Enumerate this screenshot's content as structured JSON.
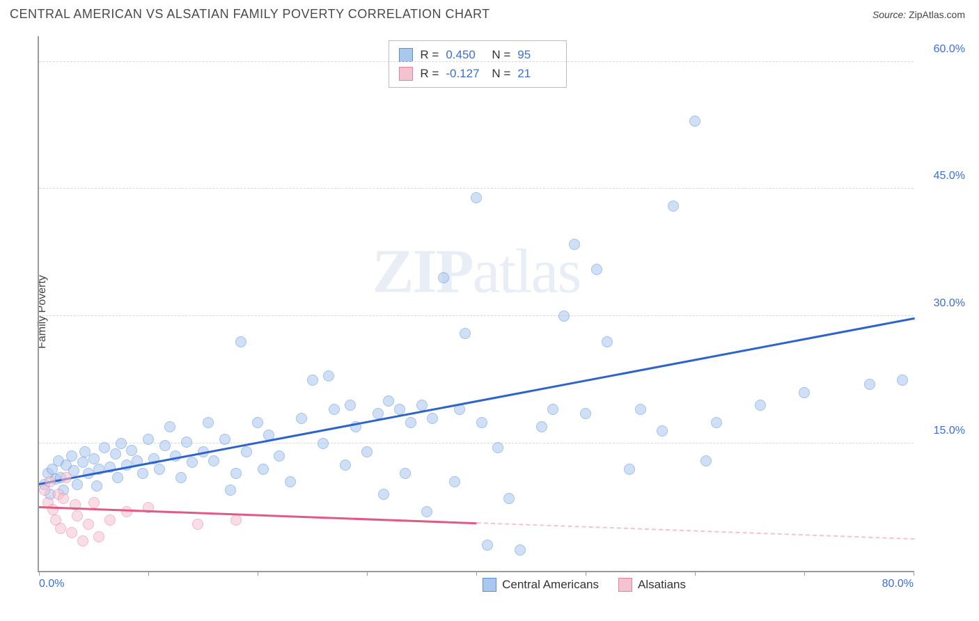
{
  "header": {
    "title": "CENTRAL AMERICAN VS ALSATIAN FAMILY POVERTY CORRELATION CHART",
    "source_label": "Source: ",
    "source_value": "ZipAtlas.com"
  },
  "chart": {
    "type": "scatter",
    "ylabel": "Family Poverty",
    "watermark_bold": "ZIP",
    "watermark_rest": "atlas",
    "xlim": [
      0,
      80
    ],
    "ylim": [
      0,
      63
    ],
    "xtick_positions": [
      0,
      10,
      20,
      30,
      40,
      50,
      60,
      70,
      80
    ],
    "xtick_labels": {
      "0": "0.0%",
      "80": "80.0%"
    },
    "ytick_positions": [
      15,
      30,
      45,
      60
    ],
    "ytick_labels": {
      "15": "15.0%",
      "30": "30.0%",
      "45": "45.0%",
      "60": "60.0%"
    },
    "grid_color": "#d8d8d8",
    "axis_color": "#9a9a9a",
    "tick_label_color": "#3b6fd6",
    "background_color": "#ffffff",
    "marker_radius": 8,
    "marker_opacity": 0.55,
    "series": [
      {
        "name": "Central Americans",
        "fill": "#a9c7ef",
        "stroke": "#5b8fd6",
        "line_color": "#2e63c9",
        "stats": {
          "R": "0.450",
          "N": "95"
        },
        "trend": {
          "x1": 0,
          "y1": 10.5,
          "x2": 80,
          "y2": 30.0,
          "solid_until_x": 80
        },
        "points": [
          [
            0.5,
            10.2
          ],
          [
            0.8,
            11.5
          ],
          [
            1.0,
            9.0
          ],
          [
            1.2,
            12.0
          ],
          [
            1.5,
            10.8
          ],
          [
            1.8,
            13.0
          ],
          [
            2.0,
            11.0
          ],
          [
            2.2,
            9.5
          ],
          [
            2.5,
            12.5
          ],
          [
            3.0,
            13.5
          ],
          [
            3.2,
            11.8
          ],
          [
            3.5,
            10.2
          ],
          [
            4.0,
            12.8
          ],
          [
            4.2,
            14.0
          ],
          [
            4.5,
            11.5
          ],
          [
            5.0,
            13.2
          ],
          [
            5.3,
            10.0
          ],
          [
            5.5,
            12.0
          ],
          [
            6.0,
            14.5
          ],
          [
            6.5,
            12.2
          ],
          [
            7.0,
            13.8
          ],
          [
            7.2,
            11.0
          ],
          [
            7.5,
            15.0
          ],
          [
            8.0,
            12.5
          ],
          [
            8.5,
            14.2
          ],
          [
            9.0,
            13.0
          ],
          [
            9.5,
            11.5
          ],
          [
            10.0,
            15.5
          ],
          [
            10.5,
            13.2
          ],
          [
            11.0,
            12.0
          ],
          [
            11.5,
            14.8
          ],
          [
            12.0,
            17.0
          ],
          [
            12.5,
            13.5
          ],
          [
            13.0,
            11.0
          ],
          [
            13.5,
            15.2
          ],
          [
            14.0,
            12.8
          ],
          [
            15.0,
            14.0
          ],
          [
            15.5,
            17.5
          ],
          [
            16.0,
            13.0
          ],
          [
            17.0,
            15.5
          ],
          [
            17.5,
            9.5
          ],
          [
            18.0,
            11.5
          ],
          [
            18.5,
            27.0
          ],
          [
            19.0,
            14.0
          ],
          [
            20.0,
            17.5
          ],
          [
            20.5,
            12.0
          ],
          [
            21.0,
            16.0
          ],
          [
            22.0,
            13.5
          ],
          [
            23.0,
            10.5
          ],
          [
            24.0,
            18.0
          ],
          [
            25.0,
            22.5
          ],
          [
            26.0,
            15.0
          ],
          [
            26.5,
            23.0
          ],
          [
            27.0,
            19.0
          ],
          [
            28.0,
            12.5
          ],
          [
            28.5,
            19.5
          ],
          [
            29.0,
            17.0
          ],
          [
            30.0,
            14.0
          ],
          [
            31.0,
            18.5
          ],
          [
            31.5,
            9.0
          ],
          [
            32.0,
            20.0
          ],
          [
            33.0,
            19.0
          ],
          [
            33.5,
            11.5
          ],
          [
            34.0,
            17.5
          ],
          [
            35.0,
            19.5
          ],
          [
            35.5,
            7.0
          ],
          [
            36.0,
            18.0
          ],
          [
            37.0,
            34.5
          ],
          [
            38.0,
            10.5
          ],
          [
            38.5,
            19.0
          ],
          [
            39.0,
            28.0
          ],
          [
            40.0,
            44.0
          ],
          [
            40.5,
            17.5
          ],
          [
            41.0,
            3.0
          ],
          [
            42.0,
            14.5
          ],
          [
            43.0,
            8.5
          ],
          [
            44.0,
            2.5
          ],
          [
            46.0,
            17.0
          ],
          [
            47.0,
            19.0
          ],
          [
            48.0,
            30.0
          ],
          [
            49.0,
            38.5
          ],
          [
            50.0,
            18.5
          ],
          [
            51.0,
            35.5
          ],
          [
            52.0,
            27.0
          ],
          [
            54.0,
            12.0
          ],
          [
            55.0,
            19.0
          ],
          [
            57.0,
            16.5
          ],
          [
            58.0,
            43.0
          ],
          [
            60.0,
            53.0
          ],
          [
            61.0,
            13.0
          ],
          [
            62.0,
            17.5
          ],
          [
            66.0,
            19.5
          ],
          [
            70.0,
            21.0
          ],
          [
            76.0,
            22.0
          ],
          [
            79.0,
            22.5
          ]
        ]
      },
      {
        "name": "Alsatians",
        "fill": "#f5c2cf",
        "stroke": "#e77fa0",
        "line_color": "#e05a85",
        "stats": {
          "R": "-0.127",
          "N": "21"
        },
        "trend": {
          "x1": 0,
          "y1": 7.8,
          "x2": 80,
          "y2": 4.0,
          "solid_until_x": 40
        },
        "points": [
          [
            0.5,
            9.5
          ],
          [
            0.8,
            8.0
          ],
          [
            1.0,
            10.5
          ],
          [
            1.3,
            7.2
          ],
          [
            1.5,
            6.0
          ],
          [
            1.8,
            9.0
          ],
          [
            2.0,
            5.0
          ],
          [
            2.2,
            8.5
          ],
          [
            2.5,
            11.0
          ],
          [
            3.0,
            4.5
          ],
          [
            3.3,
            7.8
          ],
          [
            3.5,
            6.5
          ],
          [
            4.0,
            3.5
          ],
          [
            4.5,
            5.5
          ],
          [
            5.0,
            8.0
          ],
          [
            5.5,
            4.0
          ],
          [
            6.5,
            6.0
          ],
          [
            8.0,
            7.0
          ],
          [
            10.0,
            7.5
          ],
          [
            14.5,
            5.5
          ],
          [
            18.0,
            6.0
          ]
        ]
      }
    ],
    "legend": {
      "items": [
        {
          "label": "Central Americans",
          "fill": "#a9c7ef",
          "stroke": "#5b8fd6"
        },
        {
          "label": "Alsatians",
          "fill": "#f5c2cf",
          "stroke": "#e77fa0"
        }
      ]
    }
  }
}
